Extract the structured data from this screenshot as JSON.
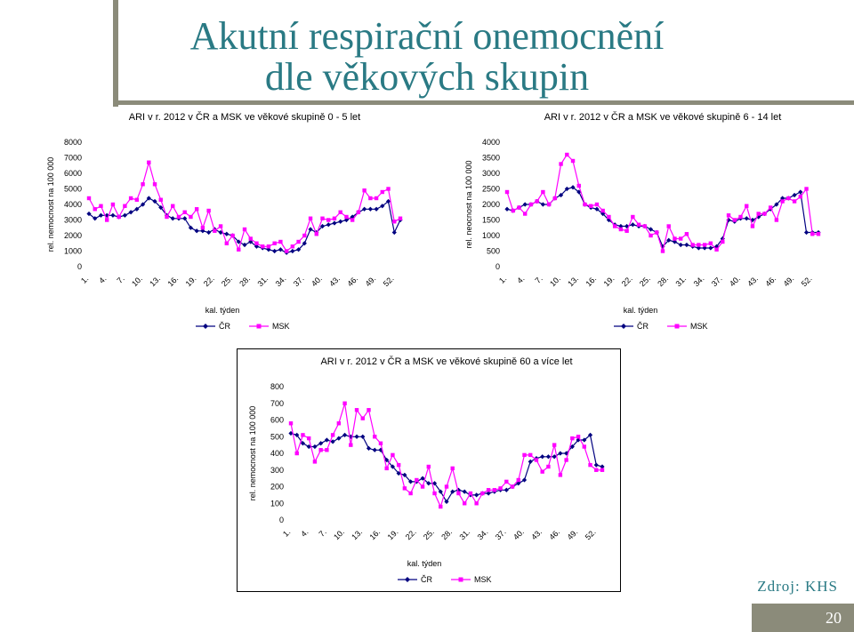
{
  "slide": {
    "title_line1": "Akutní respirační onemocnění",
    "title_line2": "dle věkových skupin",
    "source": "Zdroj: KHS",
    "page_number": "20"
  },
  "colors": {
    "cr": "#000080",
    "msk": "#ff00ff",
    "bar": "#8b8b7a",
    "title": "#2a7a84"
  },
  "chart_data": [
    {
      "type": "line",
      "title": "ARI v r. 2012 v ČR a MSK ve věkové skupině 0 - 5 let",
      "xlabel": "kal. týden",
      "ylabel": "rel. nemocnost na 100 000",
      "ylim": [
        0,
        8000
      ],
      "yticks": [
        0,
        1000,
        2000,
        3000,
        4000,
        5000,
        6000,
        7000,
        8000
      ],
      "x": [
        1,
        2,
        3,
        4,
        5,
        6,
        7,
        8,
        9,
        10,
        11,
        12,
        13,
        14,
        15,
        16,
        17,
        18,
        19,
        20,
        21,
        22,
        23,
        24,
        25,
        26,
        27,
        28,
        29,
        30,
        31,
        32,
        33,
        34,
        35,
        36,
        37,
        38,
        39,
        40,
        41,
        42,
        43,
        44,
        45,
        46,
        47,
        48,
        49,
        50,
        51,
        52,
        53
      ],
      "xtick_labels": [
        "1.",
        "4.",
        "7.",
        "10.",
        "13.",
        "16.",
        "19.",
        "22.",
        "25.",
        "28.",
        "31.",
        "34.",
        "37.",
        "40.",
        "43.",
        "46.",
        "49.",
        "52."
      ],
      "legend": "bottom",
      "series": [
        {
          "name": "ČR",
          "color": "#000080",
          "marker": "diamond",
          "values": [
            3400,
            3100,
            3300,
            3300,
            3300,
            3200,
            3300,
            3500,
            3700,
            4000,
            4400,
            4200,
            3800,
            3300,
            3100,
            3100,
            3100,
            2500,
            2300,
            2300,
            2200,
            2400,
            2200,
            2100,
            2000,
            1600,
            1400,
            1600,
            1300,
            1200,
            1100,
            1000,
            1100,
            900,
            1000,
            1100,
            1500,
            2400,
            2200,
            2600,
            2700,
            2800,
            2900,
            3000,
            3200,
            3500,
            3700,
            3700,
            3700,
            3900,
            4200,
            2200,
            3000
          ]
        },
        {
          "name": "MSK",
          "color": "#ff00ff",
          "marker": "square",
          "values": [
            4400,
            3700,
            3900,
            3000,
            4000,
            3200,
            3900,
            4400,
            4300,
            5300,
            6700,
            5300,
            4300,
            3200,
            3900,
            3200,
            3500,
            3200,
            3700,
            2500,
            3600,
            2300,
            2600,
            1500,
            2000,
            1100,
            2400,
            1800,
            1500,
            1300,
            1300,
            1500,
            1600,
            1000,
            1300,
            1600,
            2000,
            3100,
            2100,
            3100,
            3000,
            3100,
            3500,
            3200,
            3000,
            3500,
            4900,
            4400,
            4400,
            4800,
            5000,
            2900,
            3100
          ]
        }
      ]
    },
    {
      "type": "line",
      "title": "ARI v r. 2012 v ČR a MSK ve věkové skupině 6 - 14 let",
      "xlabel": "kal. týden",
      "ylabel": "rel. neocnost na 100 000",
      "ylim": [
        0,
        4000
      ],
      "yticks": [
        0,
        500,
        1000,
        1500,
        2000,
        2500,
        3000,
        3500,
        4000
      ],
      "x": [
        1,
        2,
        3,
        4,
        5,
        6,
        7,
        8,
        9,
        10,
        11,
        12,
        13,
        14,
        15,
        16,
        17,
        18,
        19,
        20,
        21,
        22,
        23,
        24,
        25,
        26,
        27,
        28,
        29,
        30,
        31,
        32,
        33,
        34,
        35,
        36,
        37,
        38,
        39,
        40,
        41,
        42,
        43,
        44,
        45,
        46,
        47,
        48,
        49,
        50,
        51,
        52,
        53
      ],
      "xtick_labels": [
        "1.",
        "4.",
        "7.",
        "10.",
        "13.",
        "16.",
        "19.",
        "22.",
        "25.",
        "28.",
        "31.",
        "34.",
        "37.",
        "40.",
        "43.",
        "46.",
        "49.",
        "52."
      ],
      "legend": "bottom",
      "series": [
        {
          "name": "ČR",
          "color": "#000080",
          "marker": "diamond",
          "values": [
            1850,
            1800,
            1900,
            2000,
            2000,
            2100,
            2000,
            2000,
            2200,
            2300,
            2500,
            2550,
            2400,
            2000,
            1900,
            1850,
            1700,
            1500,
            1350,
            1300,
            1300,
            1350,
            1300,
            1300,
            1200,
            1100,
            650,
            850,
            800,
            700,
            700,
            650,
            600,
            600,
            600,
            650,
            900,
            1500,
            1450,
            1550,
            1550,
            1500,
            1600,
            1700,
            1850,
            2000,
            2200,
            2200,
            2300,
            2400,
            1100,
            1100,
            1100
          ]
        },
        {
          "name": "MSK",
          "color": "#ff00ff",
          "marker": "square",
          "values": [
            2400,
            1800,
            1900,
            1700,
            2000,
            2100,
            2400,
            2000,
            2200,
            3300,
            3600,
            3400,
            2600,
            2000,
            1950,
            2000,
            1800,
            1600,
            1300,
            1200,
            1150,
            1600,
            1350,
            1300,
            1000,
            1100,
            500,
            1300,
            900,
            900,
            1050,
            700,
            700,
            700,
            750,
            550,
            800,
            1650,
            1500,
            1600,
            1950,
            1300,
            1700,
            1700,
            1900,
            1500,
            2100,
            2200,
            2100,
            2250,
            2500,
            1050,
            1050
          ]
        }
      ]
    },
    {
      "type": "line",
      "title": "ARI v r. 2012 v ČR a MSK ve věkové skupině 60 a více let",
      "xlabel": "kal. týden",
      "ylabel": "rel. nemocnost na 100 000",
      "ylim": [
        0,
        800
      ],
      "yticks": [
        0,
        100,
        200,
        300,
        400,
        500,
        600,
        700,
        800
      ],
      "x": [
        1,
        2,
        3,
        4,
        5,
        6,
        7,
        8,
        9,
        10,
        11,
        12,
        13,
        14,
        15,
        16,
        17,
        18,
        19,
        20,
        21,
        22,
        23,
        24,
        25,
        26,
        27,
        28,
        29,
        30,
        31,
        32,
        33,
        34,
        35,
        36,
        37,
        38,
        39,
        40,
        41,
        42,
        43,
        44,
        45,
        46,
        47,
        48,
        49,
        50,
        51,
        52,
        53
      ],
      "xtick_labels": [
        "1.",
        "4.",
        "7.",
        "10.",
        "13.",
        "16.",
        "19.",
        "22.",
        "25.",
        "28.",
        "31.",
        "34.",
        "37.",
        "40.",
        "43.",
        "46.",
        "49.",
        "52."
      ],
      "legend": "bottom",
      "series": [
        {
          "name": "ČR",
          "color": "#000080",
          "marker": "diamond",
          "values": [
            520,
            510,
            460,
            440,
            440,
            460,
            480,
            470,
            490,
            510,
            500,
            500,
            500,
            430,
            420,
            420,
            360,
            320,
            280,
            270,
            230,
            230,
            250,
            220,
            220,
            170,
            110,
            170,
            180,
            170,
            150,
            150,
            160,
            160,
            170,
            180,
            180,
            200,
            220,
            240,
            350,
            370,
            380,
            380,
            380,
            400,
            400,
            440,
            480,
            480,
            510,
            330,
            320
          ]
        },
        {
          "name": "MSK",
          "color": "#ff00ff",
          "marker": "square",
          "values": [
            580,
            400,
            510,
            490,
            350,
            420,
            420,
            510,
            580,
            700,
            450,
            660,
            610,
            660,
            500,
            460,
            310,
            390,
            330,
            190,
            160,
            240,
            200,
            320,
            160,
            80,
            200,
            310,
            160,
            100,
            160,
            100,
            160,
            180,
            180,
            190,
            230,
            200,
            240,
            390,
            390,
            360,
            290,
            320,
            450,
            270,
            360,
            490,
            500,
            440,
            330,
            300,
            300
          ]
        }
      ]
    }
  ]
}
